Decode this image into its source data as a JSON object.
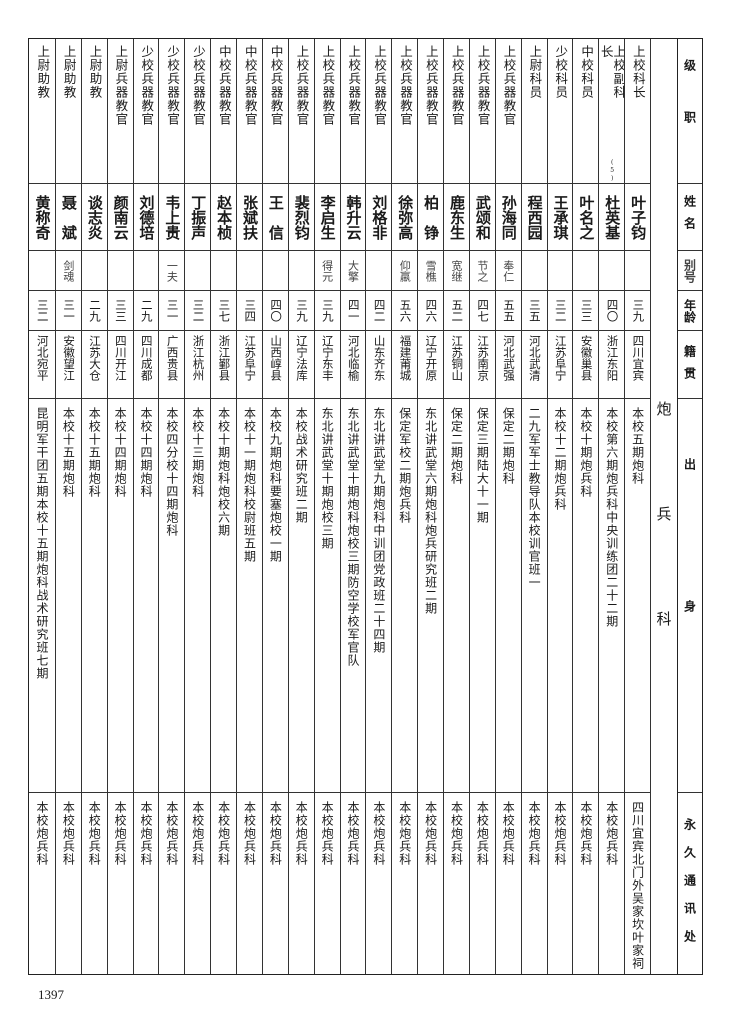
{
  "headers": {
    "rank": "级职",
    "name": "姓名",
    "alias": "别号",
    "age": "年龄",
    "origin": "籍贯",
    "education": "出身",
    "address": "永久通讯处"
  },
  "section_title": "炮兵科",
  "rows": [
    {
      "rank": "上校科长",
      "name": "叶子钧",
      "alias": "",
      "age": "三九",
      "origin": "四川宜宾",
      "education": "本校五期炮科",
      "address": "四川宜宾北门外吴家坎叶家祠"
    },
    {
      "rank": "上校副科长",
      "note": "(5)",
      "name": "杜英基",
      "alias": "",
      "age": "四〇",
      "origin": "浙江东阳",
      "education": "本校第六期炮兵科中央训练团二十二期",
      "address": "本校炮兵科"
    },
    {
      "rank": "中校科员",
      "name": "叶名之",
      "alias": "",
      "age": "三三",
      "origin": "安徽巢县",
      "education": "本校十期炮兵科",
      "address": "本校炮兵科"
    },
    {
      "rank": "少校科员",
      "name": "王承琪",
      "alias": "",
      "age": "三二",
      "origin": "江苏阜宁",
      "education": "本校十二期炮兵科",
      "address": "本校炮兵科"
    },
    {
      "rank": "上尉科员",
      "name": "程西园",
      "alias": "",
      "age": "三五",
      "origin": "河北武清",
      "education": "二九军军士教导队本校训官班一",
      "address": "本校炮兵科"
    },
    {
      "rank": "上校兵器教官",
      "name": "孙海同",
      "alias": "奉仁",
      "age": "五五",
      "origin": "河北武强",
      "education": "保定二期炮科",
      "address": "本校炮兵科"
    },
    {
      "rank": "上校兵器教官",
      "name": "武颂和",
      "alias": "节之",
      "age": "四七",
      "origin": "江苏南京",
      "education": "保定三期陆大十一期",
      "address": "本校炮兵科"
    },
    {
      "rank": "上校兵器教官",
      "name": "鹿东生",
      "alias": "宽继",
      "age": "五二",
      "origin": "江苏铜山",
      "education": "保定二期炮科",
      "address": "本校炮兵科"
    },
    {
      "rank": "上校兵器教官",
      "name": "柏　铮",
      "alias": "雪樵",
      "age": "四六",
      "origin": "辽宁开原",
      "education": "东北讲武堂六期炮科炮兵研究班二期",
      "address": "本校炮兵科"
    },
    {
      "rank": "上校兵器教官",
      "name": "徐弥高",
      "alias": "仰羸",
      "age": "五六",
      "origin": "福建莆城",
      "education": "保定军校二期炮兵科",
      "address": "本校炮兵科"
    },
    {
      "rank": "上校兵器教官",
      "name": "刘格非",
      "alias": "",
      "age": "四二",
      "origin": "山东齐东",
      "education": "东北讲武堂九期炮科中训团党政班二十四期",
      "address": "本校炮兵科"
    },
    {
      "rank": "上校兵器教官",
      "name": "韩升云",
      "alias": "大擎",
      "age": "四一",
      "origin": "河北临榆",
      "education": "东北讲武堂十期炮科炮校三期防空学校军官队",
      "address": "本校炮兵科"
    },
    {
      "rank": "上校兵器教官",
      "name": "李启生",
      "alias": "得元",
      "age": "三九",
      "origin": "辽宁东丰",
      "education": "东北讲武堂十期炮校三期",
      "address": "本校炮兵科"
    },
    {
      "rank": "上校兵器教官",
      "name": "裴烈钧",
      "alias": "",
      "age": "三九",
      "origin": "辽宁法库",
      "education": "本校战术研究班二期",
      "address": "本校炮兵科"
    },
    {
      "rank": "中校兵器教官",
      "name": "王　信",
      "alias": "",
      "age": "四〇",
      "origin": "山西崞县",
      "education": "本校九期炮科要塞炮校一期",
      "address": "本校炮兵科"
    },
    {
      "rank": "中校兵器教官",
      "name": "张斌扶",
      "alias": "",
      "age": "三四",
      "origin": "江苏阜宁",
      "education": "本校十一期炮科校尉班五期",
      "address": "本校炮兵科"
    },
    {
      "rank": "中校兵器教官",
      "name": "赵本桢",
      "alias": "",
      "age": "三七",
      "origin": "浙江鄞县",
      "education": "本校十期炮科炮校六期",
      "address": "本校炮兵科"
    },
    {
      "rank": "少校兵器教官",
      "name": "丁振声",
      "alias": "",
      "age": "三二",
      "origin": "浙江杭州",
      "education": "本校十三期炮科",
      "address": "本校炮兵科"
    },
    {
      "rank": "少校兵器教官",
      "name": "韦上贵",
      "alias": "一夫",
      "age": "三一",
      "origin": "广西贵县",
      "education": "本校四分校十四期炮科",
      "address": "本校炮兵科"
    },
    {
      "rank": "少校兵器教官",
      "name": "刘德培",
      "alias": "",
      "age": "二九",
      "origin": "四川成都",
      "education": "本校十四期炮科",
      "address": "本校炮兵科"
    },
    {
      "rank": "上尉兵器教官",
      "name": "颜南云",
      "alias": "",
      "age": "三三",
      "origin": "四川开江",
      "education": "本校十四期炮科",
      "address": "本校炮兵科"
    },
    {
      "rank": "上尉助教",
      "name": "谈志炎",
      "alias": "",
      "age": "二九",
      "origin": "江苏大仓",
      "education": "本校十五期炮科",
      "address": "本校炮兵科"
    },
    {
      "rank": "上尉助教",
      "name": "聂　斌",
      "alias": "剑魂",
      "age": "三一",
      "origin": "安徽望江",
      "education": "本校十五期炮科",
      "address": "本校炮兵科"
    },
    {
      "rank": "上尉助教",
      "name": "黄称奇",
      "alias": "",
      "age": "三二",
      "origin": "河北宛平",
      "education": "昆明军干团五期本校十五期炮科战术研究班七期",
      "address": "本校炮兵科"
    }
  ],
  "page_number": "1397"
}
